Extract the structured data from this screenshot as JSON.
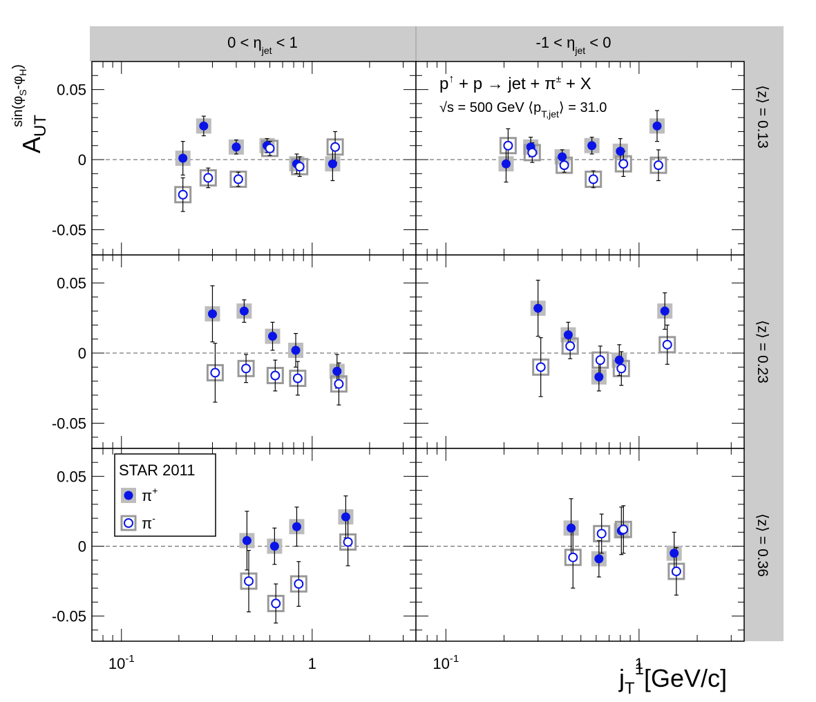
{
  "figure": {
    "column_headers": [
      {
        "main": "0 < η",
        "sub": "jet",
        "tail": " < 1"
      },
      {
        "main": "-1 < η",
        "sub": "jet",
        "tail": " < 0"
      }
    ],
    "row_headers": [
      "⟨z⟩ = 0.13",
      "⟨z⟩ = 0.23",
      "⟨z⟩ = 0.36"
    ],
    "y_axis_title": {
      "base": "A",
      "sub": "UT",
      "sup": "sin(φ",
      "sup_s": "S",
      "sup_mid": "-φ",
      "sup_h": "H",
      "sup_end": ")"
    },
    "x_axis_title": {
      "base": "j",
      "sub": "T",
      "sup": "1",
      "tail": "[GeV/c]"
    },
    "process_line1": {
      "a": "p",
      "arrow_up": "↑",
      "b": " + p → jet + π",
      "pm": "±",
      "c": " + X"
    },
    "process_line2": {
      "a": "√s = 500 GeV ⟨p",
      "sub": "T,jet",
      "b": "⟩ = 31.0"
    },
    "legend": {
      "title": "STAR 2011",
      "pi_plus": "π",
      "pi_plus_sup": "+",
      "pi_minus": "π",
      "pi_minus_sup": "-"
    }
  },
  "chart_data": {
    "type": "scatter",
    "x_scale": "log",
    "xlim": [
      0.07,
      3.5
    ],
    "ylim": [
      -0.068,
      0.07
    ],
    "y_ticks": [
      {
        "v": 0.05,
        "label": "0.05"
      },
      {
        "v": 0,
        "label": "0"
      },
      {
        "v": -0.05,
        "label": "-0.05"
      }
    ],
    "x_tick_labels": [
      {
        "v": 0.1,
        "base": "10",
        "sup": "-1"
      },
      {
        "v": 1,
        "base": "1",
        "sup": ""
      }
    ],
    "zero_line": true,
    "colors": {
      "pi_plus": "#0a14e6",
      "pi_minus_edge": "#0a14e6",
      "pi_minus_fill": "#ffffff",
      "sys_box": "#bdbdbd",
      "frame_bg": "#cccccc"
    },
    "panels": [
      {
        "row": 0,
        "col": 0,
        "pi_plus": [
          {
            "x": 0.21,
            "y": 0.001,
            "err": 0.012
          },
          {
            "x": 0.27,
            "y": 0.024,
            "err": 0.007
          },
          {
            "x": 0.4,
            "y": 0.009,
            "err": 0.005
          },
          {
            "x": 0.58,
            "y": 0.01,
            "err": 0.005
          },
          {
            "x": 0.83,
            "y": -0.003,
            "err": 0.007
          },
          {
            "x": 1.28,
            "y": -0.003,
            "err": 0.012
          }
        ],
        "pi_minus": [
          {
            "x": 0.21,
            "y": -0.025,
            "err": 0.012
          },
          {
            "x": 0.285,
            "y": -0.013,
            "err": 0.007
          },
          {
            "x": 0.41,
            "y": -0.014,
            "err": 0.005
          },
          {
            "x": 0.6,
            "y": 0.008,
            "err": 0.005
          },
          {
            "x": 0.86,
            "y": -0.005,
            "err": 0.007
          },
          {
            "x": 1.32,
            "y": 0.009,
            "err": 0.011
          }
        ]
      },
      {
        "row": 0,
        "col": 1,
        "pi_plus": [
          {
            "x": 0.205,
            "y": -0.003,
            "err": 0.013
          },
          {
            "x": 0.275,
            "y": 0.009,
            "err": 0.007
          },
          {
            "x": 0.4,
            "y": 0.002,
            "err": 0.005
          },
          {
            "x": 0.57,
            "y": 0.01,
            "err": 0.006
          },
          {
            "x": 0.8,
            "y": 0.006,
            "err": 0.009
          },
          {
            "x": 1.24,
            "y": 0.024,
            "err": 0.011
          }
        ],
        "pi_minus": [
          {
            "x": 0.21,
            "y": 0.01,
            "err": 0.012
          },
          {
            "x": 0.28,
            "y": 0.005,
            "err": 0.007
          },
          {
            "x": 0.41,
            "y": -0.004,
            "err": 0.005
          },
          {
            "x": 0.58,
            "y": -0.014,
            "err": 0.006
          },
          {
            "x": 0.83,
            "y": -0.003,
            "err": 0.009
          },
          {
            "x": 1.26,
            "y": -0.004,
            "err": 0.011
          }
        ]
      },
      {
        "row": 1,
        "col": 0,
        "pi_plus": [
          {
            "x": 0.3,
            "y": 0.028,
            "err": 0.02
          },
          {
            "x": 0.44,
            "y": 0.03,
            "err": 0.008
          },
          {
            "x": 0.62,
            "y": 0.012,
            "err": 0.01
          },
          {
            "x": 0.82,
            "y": 0.002,
            "err": 0.012
          },
          {
            "x": 1.35,
            "y": -0.013,
            "err": 0.012
          }
        ],
        "pi_minus": [
          {
            "x": 0.31,
            "y": -0.014,
            "err": 0.021
          },
          {
            "x": 0.45,
            "y": -0.011,
            "err": 0.01
          },
          {
            "x": 0.64,
            "y": -0.016,
            "err": 0.011
          },
          {
            "x": 0.84,
            "y": -0.018,
            "err": 0.012
          },
          {
            "x": 1.38,
            "y": -0.022,
            "err": 0.015
          }
        ]
      },
      {
        "row": 1,
        "col": 1,
        "pi_plus": [
          {
            "x": 0.3,
            "y": 0.032,
            "err": 0.02
          },
          {
            "x": 0.43,
            "y": 0.013,
            "err": 0.009
          },
          {
            "x": 0.62,
            "y": -0.017,
            "err": 0.01
          },
          {
            "x": 0.79,
            "y": -0.005,
            "err": 0.011
          },
          {
            "x": 1.36,
            "y": 0.03,
            "err": 0.013
          }
        ],
        "pi_minus": [
          {
            "x": 0.31,
            "y": -0.01,
            "err": 0.021
          },
          {
            "x": 0.44,
            "y": 0.005,
            "err": 0.009
          },
          {
            "x": 0.63,
            "y": -0.005,
            "err": 0.01
          },
          {
            "x": 0.81,
            "y": -0.011,
            "err": 0.012
          },
          {
            "x": 1.4,
            "y": 0.006,
            "err": 0.014
          }
        ]
      },
      {
        "row": 2,
        "col": 0,
        "pi_plus": [
          {
            "x": 0.455,
            "y": 0.004,
            "err": 0.021
          },
          {
            "x": 0.635,
            "y": 0.0,
            "err": 0.013
          },
          {
            "x": 0.83,
            "y": 0.014,
            "err": 0.014
          },
          {
            "x": 1.5,
            "y": 0.021,
            "err": 0.015
          }
        ],
        "pi_minus": [
          {
            "x": 0.465,
            "y": -0.025,
            "err": 0.022
          },
          {
            "x": 0.645,
            "y": -0.041,
            "err": 0.014
          },
          {
            "x": 0.85,
            "y": -0.027,
            "err": 0.016
          },
          {
            "x": 1.54,
            "y": 0.003,
            "err": 0.017
          }
        ]
      },
      {
        "row": 2,
        "col": 1,
        "pi_plus": [
          {
            "x": 0.445,
            "y": 0.013,
            "err": 0.021
          },
          {
            "x": 0.62,
            "y": -0.009,
            "err": 0.013
          },
          {
            "x": 0.81,
            "y": 0.011,
            "err": 0.017
          },
          {
            "x": 1.52,
            "y": -0.005,
            "err": 0.015
          }
        ],
        "pi_minus": [
          {
            "x": 0.455,
            "y": -0.008,
            "err": 0.022
          },
          {
            "x": 0.64,
            "y": 0.009,
            "err": 0.014
          },
          {
            "x": 0.83,
            "y": 0.012,
            "err": 0.017
          },
          {
            "x": 1.56,
            "y": -0.018,
            "err": 0.017
          }
        ]
      }
    ]
  }
}
